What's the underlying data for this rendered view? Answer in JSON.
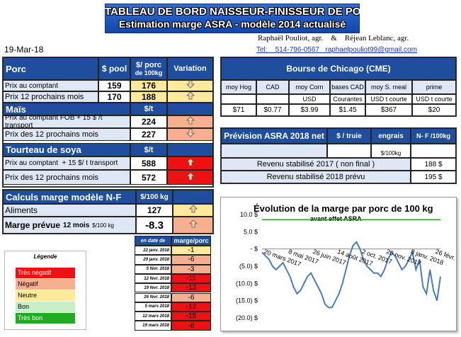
{
  "header": {
    "title1": "TABLEAU DE BORD NAISSEUR-FINISSEUR DE PORC",
    "title2": "Estimation marge ASRA - modèle 2014 actualisé",
    "authors": "Raphaël Pouliot, agr.    &    Réjean Leblanc, agr.",
    "date": "19-Mar-18",
    "tel": "Tel:    514-796-0567   raphaelpouliot99@gmail.com"
  },
  "porc": {
    "header": {
      "label": "Porc",
      "pool": "$ pool",
      "per100a": "$/ porc",
      "per100b": "de 100kg",
      "variation": "Variation"
    },
    "rows": [
      {
        "label": "Prix au comptant",
        "pool": "159",
        "value": "176",
        "arrow": "down"
      },
      {
        "label": "Prix 12 prochains mois",
        "pool": "170",
        "value": "188",
        "arrow": "up"
      }
    ]
  },
  "mais": {
    "header": {
      "label": "Maïs",
      "unit": "$/t"
    },
    "rows": [
      {
        "label": "Prix au comptant FOB + 15 $ /t transport",
        "value": "224",
        "arrow": "up",
        "color": "salmon"
      },
      {
        "label": "Prix des 12 prochains mois",
        "value": "227",
        "arrow": "down",
        "color": "salmon"
      }
    ]
  },
  "soya": {
    "header": {
      "label": "Tourteau de soya",
      "unit": "$/t"
    },
    "rows": [
      {
        "label": "Prix au comptant  + 15 $/ t transport",
        "value": "588",
        "arrow": "up",
        "color": "red"
      },
      {
        "label": "Prix des 12 prochains mois",
        "value": "572",
        "arrow": "up",
        "color": "red"
      }
    ]
  },
  "calculs": {
    "header": {
      "label": "Calculs marge  modèle N-F",
      "unit": "$/100 kg"
    },
    "aliments": {
      "label": "Aliments",
      "value": "127",
      "arrow": "up"
    },
    "marge": {
      "label": "Marge prévue",
      "sub": "12 mois",
      "unit": "$/100 kg",
      "value": "-8.3",
      "arrow": "up"
    }
  },
  "history": {
    "header_date": "en date de",
    "header_value": "marge/porc",
    "rows": [
      {
        "date": "22 janv. 2018",
        "value": "-1",
        "color": "yellow"
      },
      {
        "date": "29 janv. 2018",
        "value": "-6",
        "color": "salmon"
      },
      {
        "date": "5 févr. 2018",
        "value": "-3",
        "color": "salmon"
      },
      {
        "date": "12 févr. 2018",
        "value": "-11",
        "color": "red"
      },
      {
        "date": "19 févr. 2018",
        "value": "-13",
        "color": "red"
      },
      {
        "date": "26 févr. 2018",
        "value": "-6",
        "color": "salmon"
      },
      {
        "date": "5 mars 2018",
        "value": "-12",
        "color": "red"
      },
      {
        "date": "12 mars 2018",
        "value": "-15",
        "color": "red"
      },
      {
        "date": "19 mars 2018",
        "value": "-8",
        "color": "red"
      }
    ]
  },
  "legend": {
    "title": "Légende",
    "items": [
      {
        "label": "Très négatif",
        "color": "#ee1111",
        "text": "#ffffff"
      },
      {
        "label": "Négatif",
        "color": "#f7b08f",
        "text": "#000000"
      },
      {
        "label": "Neutre",
        "color": "#ffe99a",
        "text": "#000000"
      },
      {
        "label": "Bon",
        "color": "#c8f0c8",
        "text": "#000000"
      },
      {
        "label": "Très bon",
        "color": "#22aa22",
        "text": "#ffffff"
      }
    ]
  },
  "chicago": {
    "title": "Bourse de Chicago (CME)",
    "cols": [
      {
        "head": "moy Hog",
        "unit": "",
        "value": "$71"
      },
      {
        "head": "CAD",
        "unit": "",
        "value": "$0.77"
      },
      {
        "head": "moy Corn",
        "unit": "USD",
        "value": "$3.99"
      },
      {
        "head": "bases CAD",
        "unit": "Courantes",
        "value": "$1.45"
      },
      {
        "head": "moy S. meal",
        "unit": "USD t courte",
        "value": "$367"
      },
      {
        "head": "prime",
        "unit": "USD t courte",
        "value": "$20"
      }
    ]
  },
  "asra": {
    "title": "Prévision ASRA 2018 net",
    "col1": "$ / truie",
    "col2": "engrais",
    "col3": "N- F /100kg",
    "unit2": "$/100kg",
    "rows": [
      {
        "label": "Revenu stabilisé 2017 ( non final )",
        "value": "188 $"
      },
      {
        "label": "Revenu stabilisé 2018 prévu",
        "value": "195 $"
      }
    ]
  },
  "chart_data": {
    "type": "line",
    "title": "Évolution de la marge par porc de 100 kg",
    "subtitle": "avant effet ASRA",
    "y_tick_labels": [
      "10.0 $",
      "5.0 $",
      "- $",
      "(5.0) $",
      "(10.0) $",
      "(15.0) $",
      "(20.0) $"
    ],
    "y_ticks": [
      10,
      5,
      0,
      -5,
      -10,
      -15,
      -20
    ],
    "ylim": [
      -20,
      10
    ],
    "x_tick_labels": [
      "20 mars 2017",
      "8 mai 2017",
      "26 juin 2017",
      "14 août 2017",
      "2 oct. 2017",
      "20 nov. 2017",
      "8 janv. 2018",
      "26 févr. 2018"
    ],
    "x_ticks": [
      0,
      7,
      14,
      21,
      28,
      35,
      42,
      49
    ],
    "reference_line": 8.5,
    "series": [
      {
        "values": [
          -1,
          -2,
          -3,
          -5,
          -6,
          -5,
          -4,
          -6,
          -8,
          -11,
          -13,
          -12,
          -10,
          -8,
          -7,
          -9,
          -11,
          -13,
          -16,
          -17,
          -17,
          -15,
          -13,
          -10,
          -6,
          -2,
          1,
          2,
          0,
          -3,
          -5,
          -6,
          -7,
          -7,
          -8,
          -6,
          -3,
          -1,
          -2,
          -4,
          -6,
          -5,
          -3,
          -1,
          -6,
          -3,
          -11,
          -13,
          -6,
          -12,
          -15,
          -8
        ],
        "color": "#4a7cc0"
      }
    ]
  }
}
